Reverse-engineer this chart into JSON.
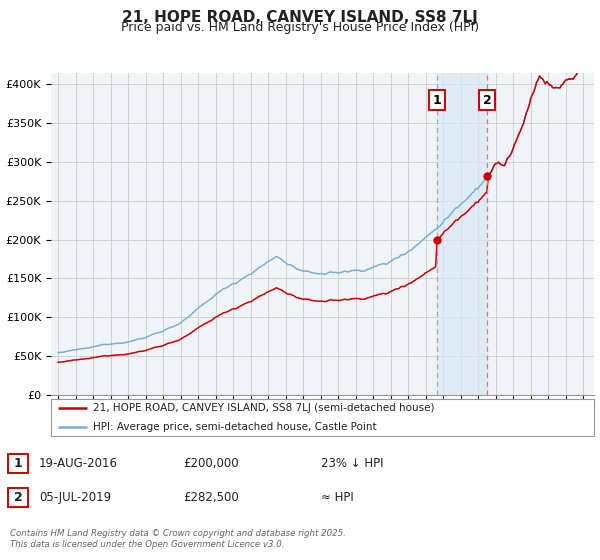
{
  "title": "21, HOPE ROAD, CANVEY ISLAND, SS8 7LJ",
  "subtitle": "Price paid vs. HM Land Registry's House Price Index (HPI)",
  "title_fontsize": 11,
  "subtitle_fontsize": 9,
  "ylabel_ticks": [
    "£0",
    "£50K",
    "£100K",
    "£150K",
    "£200K",
    "£250K",
    "£300K",
    "£350K",
    "£400K"
  ],
  "ylabel_values": [
    0,
    50000,
    100000,
    150000,
    200000,
    250000,
    300000,
    350000,
    400000
  ],
  "ylim": [
    0,
    415000
  ],
  "xlim_start": 1994.6,
  "xlim_end": 2025.6,
  "grid_color": "#cccccc",
  "background_color": "#ffffff",
  "plot_bg_color": "#f0f4f8",
  "hpi_line_color": "#7ab0d4",
  "price_line_color": "#cc0000",
  "marker1_date": 2016.63,
  "marker2_date": 2019.5,
  "marker1_price": 200000,
  "marker2_price": 282500,
  "vline1_color": "#aaaaaa",
  "vline2_color": "#ff6666",
  "shade_color": "#d8e8f5",
  "legend_entry1": "21, HOPE ROAD, CANVEY ISLAND, SS8 7LJ (semi-detached house)",
  "legend_entry2": "HPI: Average price, semi-detached house, Castle Point",
  "table_row1_date": "19-AUG-2016",
  "table_row1_price": "£200,000",
  "table_row1_note": "23% ↓ HPI",
  "table_row2_date": "05-JUL-2019",
  "table_row2_price": "£282,500",
  "table_row2_note": "≈ HPI",
  "footer": "Contains HM Land Registry data © Crown copyright and database right 2025.\nThis data is licensed under the Open Government Licence v3.0."
}
